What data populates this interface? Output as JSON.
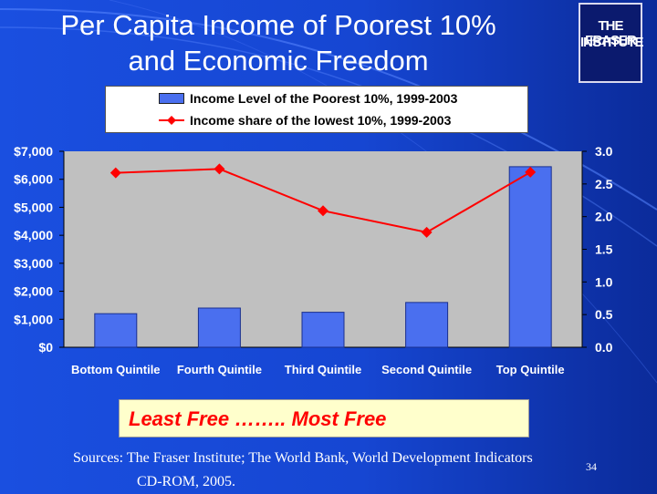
{
  "slide": {
    "title_line1": "Per Capita Income of Poorest 10%",
    "title_line2": "and Economic Freedom",
    "logo_line1": "THE FRASER",
    "logo_line2": "INSTITUTE",
    "banner_text": "Least Free …….. Most Free",
    "sources_line1": "Sources: The Fraser Institute; The World Bank, World Development Indicators",
    "sources_line2": "CD-ROM, 2005.",
    "page_number": "34"
  },
  "colors": {
    "bar": "#4a6fef",
    "line": "#ff0000",
    "plot_bg": "#c0c0c0",
    "background": "#1646d2"
  },
  "chart_data": {
    "type": "bar",
    "categories": [
      "Bottom Quintile",
      "Fourth Quintile",
      "Third Quintile",
      "Second Quintile",
      "Top Quintile"
    ],
    "series": [
      {
        "name": "Income Level of the Poorest 10%, 1999-2003",
        "type": "bar",
        "axis": "left",
        "values": [
          1200,
          1400,
          1250,
          1600,
          6450
        ]
      },
      {
        "name": "Income share of the lowest 10%, 1999-2003",
        "type": "line",
        "axis": "right",
        "marker": "diamond",
        "values": [
          2.67,
          2.73,
          2.09,
          1.76,
          2.68
        ]
      }
    ],
    "y_left": {
      "range": [
        0,
        7000
      ],
      "tick_labels": [
        "$0",
        "$1,000",
        "$2,000",
        "$3,000",
        "$4,000",
        "$5,000",
        "$6,000",
        "$7,000"
      ]
    },
    "y_right": {
      "range": [
        0,
        3.0
      ],
      "tick_labels": [
        "0.0",
        "0.5",
        "1.0",
        "1.5",
        "2.0",
        "2.5",
        "3.0"
      ]
    },
    "grid": false,
    "legend_position": "top"
  }
}
